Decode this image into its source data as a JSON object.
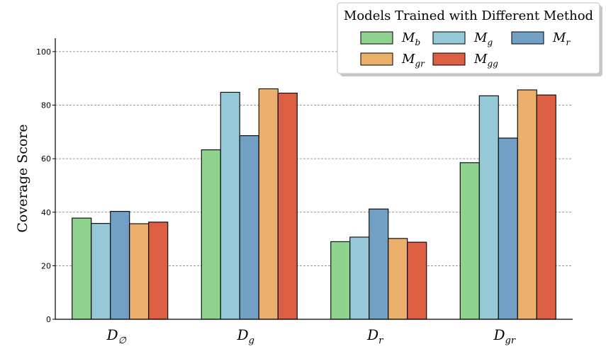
{
  "chart_data": {
    "type": "bar",
    "ylabel": "Coverage Score",
    "ylim": [
      0,
      105
    ],
    "yticks": [
      0,
      20,
      40,
      60,
      80,
      100
    ],
    "grid": "horizontal dashed",
    "legend_placement": "top-right",
    "legend_title": "Models Trained with Different Method",
    "categories": [
      {
        "base": "D",
        "sub": "∅"
      },
      {
        "base": "D",
        "sub": "g"
      },
      {
        "base": "D",
        "sub": "r"
      },
      {
        "base": "D",
        "sub": "gr"
      }
    ],
    "series": [
      {
        "base": "M",
        "sub": "b",
        "color": "#8fd48e",
        "values": [
          37.8,
          63.3,
          29.0,
          58.5
        ]
      },
      {
        "base": "M",
        "sub": "g",
        "color": "#95c9d8",
        "values": [
          35.8,
          84.8,
          30.7,
          83.5
        ]
      },
      {
        "base": "M",
        "sub": "r",
        "color": "#71a0c4",
        "values": [
          40.3,
          68.6,
          41.2,
          67.7
        ]
      },
      {
        "base": "M",
        "sub": "gr",
        "color": "#ebaf6c",
        "values": [
          35.7,
          86.1,
          30.2,
          85.7
        ]
      },
      {
        "base": "M",
        "sub": "gg",
        "color": "#dd5f43",
        "values": [
          36.3,
          84.5,
          28.8,
          83.8
        ]
      }
    ]
  }
}
